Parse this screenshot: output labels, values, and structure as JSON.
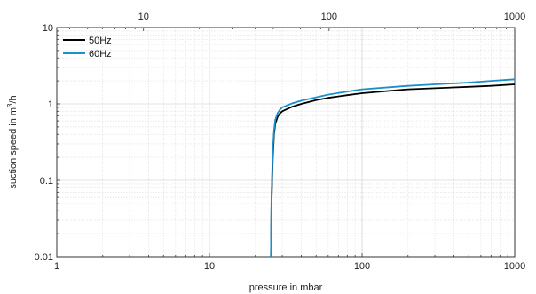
{
  "chart_data": {
    "type": "line",
    "title": "",
    "xlabel": "pressure in mbar",
    "ylabel": "suction speed in m",
    "ylabel_sup": "3",
    "ylabel_tail": "/h",
    "x_scale": "log",
    "y_scale": "log",
    "xlim": [
      1,
      1000
    ],
    "ylim": [
      0.01,
      10
    ],
    "x_ticks": [
      {
        "value": 1,
        "label": "1"
      },
      {
        "value": 10,
        "label": "10"
      },
      {
        "value": 100,
        "label": "100"
      },
      {
        "value": 1000,
        "label": "1000"
      }
    ],
    "y_ticks": [
      {
        "value": 0.01,
        "label": "0.01"
      },
      {
        "value": 0.1,
        "label": "0.1"
      },
      {
        "value": 1,
        "label": "1"
      },
      {
        "value": 10,
        "label": "10"
      }
    ],
    "top_axis": {
      "scale": "log",
      "lim": [
        3.41,
        1000
      ],
      "ticks": [
        {
          "value": 10,
          "label": "10"
        },
        {
          "value": 100,
          "label": "100"
        },
        {
          "value": 1000,
          "label": "1000"
        }
      ]
    },
    "grid": true,
    "legend_position": "top-left",
    "series": [
      {
        "name": "50Hz",
        "color": "#000000",
        "x": [
          25.3,
          25.5,
          26,
          26.5,
          27,
          28,
          29,
          30,
          32,
          35,
          40,
          50,
          60,
          80,
          100,
          150,
          200,
          300,
          500,
          700,
          1000
        ],
        "y": [
          0.01,
          0.05,
          0.2,
          0.4,
          0.55,
          0.68,
          0.75,
          0.8,
          0.85,
          0.92,
          1.0,
          1.12,
          1.2,
          1.3,
          1.38,
          1.48,
          1.55,
          1.6,
          1.67,
          1.72,
          1.8
        ]
      },
      {
        "name": "60Hz",
        "color": "#1a8fca",
        "x": [
          25.3,
          25.5,
          26,
          26.5,
          27,
          28,
          29,
          30,
          32,
          35,
          40,
          50,
          60,
          80,
          100,
          150,
          200,
          300,
          500,
          700,
          1000
        ],
        "y": [
          0.01,
          0.06,
          0.25,
          0.45,
          0.62,
          0.76,
          0.84,
          0.9,
          0.95,
          1.02,
          1.1,
          1.22,
          1.32,
          1.45,
          1.55,
          1.65,
          1.72,
          1.8,
          1.9,
          2.0,
          2.1
        ]
      }
    ]
  }
}
